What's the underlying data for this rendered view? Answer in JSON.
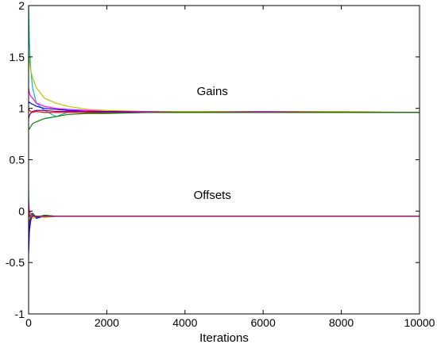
{
  "chart_data": {
    "type": "line",
    "title": "",
    "xlabel": "Iterations",
    "ylabel": "",
    "xlim": [
      0,
      10000
    ],
    "ylim": [
      -1,
      2
    ],
    "grid": false,
    "legend": "none",
    "x_ticks": [
      0,
      2000,
      4000,
      6000,
      8000,
      10000
    ],
    "x_tick_labels": [
      "0",
      "2000",
      "4000",
      "6000",
      "8000",
      "10000"
    ],
    "y_ticks": [
      -1,
      -0.5,
      0,
      0.5,
      1,
      1.5,
      2
    ],
    "y_tick_labels": [
      "-1",
      "-0.5",
      "0",
      "0.5",
      "1",
      "1.5",
      "2"
    ],
    "annotations": [
      {
        "text": "Gains",
        "x": 4700,
        "y": 1.13
      },
      {
        "text": "Offsets",
        "x": 4700,
        "y": 0.12
      }
    ],
    "series": [
      {
        "color": "#00BFBF",
        "group": "gains",
        "x": [
          0,
          20,
          50,
          100,
          200,
          400,
          700,
          1000,
          1500,
          2000,
          3000,
          4000,
          6000,
          8000,
          10000
        ],
        "y": [
          2.0,
          1.65,
          1.4,
          1.2,
          1.05,
          0.98,
          0.92,
          0.96,
          0.96,
          0.96,
          0.96,
          0.96,
          0.96,
          0.96,
          0.96
        ]
      },
      {
        "color": "#C0C000",
        "group": "gains",
        "x": [
          0,
          20,
          50,
          100,
          200,
          400,
          700,
          1000,
          1500,
          2000,
          3000,
          4000,
          6000,
          8000,
          10000
        ],
        "y": [
          1.55,
          1.45,
          1.38,
          1.3,
          1.2,
          1.1,
          1.05,
          1.02,
          0.99,
          0.98,
          0.97,
          0.97,
          0.97,
          0.97,
          0.96
        ]
      },
      {
        "color": "#FF00FF",
        "group": "gains",
        "x": [
          0,
          20,
          50,
          100,
          200,
          400,
          700,
          1000,
          1500,
          2000,
          3000,
          4000,
          6000,
          8000,
          10000
        ],
        "y": [
          1.2,
          1.15,
          1.12,
          1.1,
          1.05,
          1.02,
          1.0,
          0.99,
          0.98,
          0.97,
          0.97,
          0.96,
          0.97,
          0.96,
          0.96
        ]
      },
      {
        "color": "#0000FF",
        "group": "gains",
        "x": [
          0,
          20,
          50,
          100,
          200,
          400,
          700,
          1000,
          1500,
          2000,
          3000,
          4000,
          6000,
          8000,
          10000
        ],
        "y": [
          1.05,
          1.06,
          1.05,
          1.04,
          1.02,
          1.0,
          0.99,
          0.98,
          0.97,
          0.97,
          0.96,
          0.96,
          0.96,
          0.96,
          0.96
        ]
      },
      {
        "color": "#800080",
        "group": "gains",
        "x": [
          0,
          20,
          50,
          100,
          200,
          400,
          700,
          1000,
          1500,
          2000,
          3000,
          4000,
          6000,
          8000,
          10000
        ],
        "y": [
          0.9,
          0.93,
          0.95,
          0.97,
          0.98,
          0.98,
          0.97,
          0.97,
          0.97,
          0.96,
          0.96,
          0.96,
          0.96,
          0.96,
          0.96
        ]
      },
      {
        "color": "#FF0000",
        "group": "gains",
        "x": [
          0,
          20,
          50,
          100,
          200,
          400,
          700,
          1000,
          1500,
          2000,
          3000,
          4000,
          6000,
          8000,
          10000
        ],
        "y": [
          1.0,
          0.98,
          0.97,
          0.96,
          0.97,
          0.96,
          0.96,
          0.96,
          0.96,
          0.96,
          0.96,
          0.96,
          0.96,
          0.96,
          0.96
        ]
      },
      {
        "color": "#008000",
        "group": "gains",
        "x": [
          0,
          20,
          50,
          100,
          200,
          400,
          700,
          1000,
          1500,
          2000,
          3000,
          4000,
          6000,
          8000,
          10000
        ],
        "y": [
          0.8,
          0.8,
          0.82,
          0.85,
          0.87,
          0.9,
          0.92,
          0.94,
          0.95,
          0.95,
          0.96,
          0.96,
          0.96,
          0.96,
          0.96
        ]
      },
      {
        "color": "#00BFBF",
        "group": "offsets",
        "x": [
          0,
          20,
          50,
          100,
          200,
          400,
          700,
          1000,
          1500,
          2000,
          3000,
          4000,
          6000,
          8000,
          10000
        ],
        "y": [
          0.2,
          -0.15,
          -0.05,
          -0.02,
          -0.06,
          -0.04,
          -0.05,
          -0.05,
          -0.05,
          -0.05,
          -0.05,
          -0.05,
          -0.05,
          -0.05,
          -0.05
        ]
      },
      {
        "color": "#0000FF",
        "group": "offsets",
        "x": [
          0,
          20,
          50,
          100,
          200,
          400,
          700,
          1000,
          1500,
          2000,
          3000,
          4000,
          6000,
          8000,
          10000
        ],
        "y": [
          -0.42,
          -0.2,
          -0.1,
          -0.03,
          -0.07,
          -0.05,
          -0.05,
          -0.05,
          -0.05,
          -0.05,
          -0.05,
          -0.05,
          -0.05,
          -0.05,
          -0.05
        ]
      },
      {
        "color": "#FF00FF",
        "group": "offsets",
        "x": [
          0,
          20,
          50,
          100,
          200,
          400,
          700,
          1000,
          1500,
          2000,
          3000,
          4000,
          6000,
          8000,
          10000
        ],
        "y": [
          0.1,
          0.0,
          -0.02,
          -0.04,
          -0.05,
          -0.06,
          -0.05,
          -0.05,
          -0.05,
          -0.05,
          -0.05,
          -0.05,
          -0.05,
          -0.05,
          -0.05
        ]
      },
      {
        "color": "#C0C000",
        "group": "offsets",
        "x": [
          0,
          20,
          50,
          100,
          200,
          400,
          700,
          1000,
          1500,
          2000,
          3000,
          4000,
          6000,
          8000,
          10000
        ],
        "y": [
          -0.1,
          -0.08,
          -0.06,
          -0.07,
          -0.05,
          -0.06,
          -0.05,
          -0.05,
          -0.05,
          -0.05,
          -0.05,
          -0.05,
          -0.05,
          -0.05,
          -0.05
        ]
      },
      {
        "color": "#008000",
        "group": "offsets",
        "x": [
          0,
          20,
          50,
          100,
          200,
          400,
          700,
          1000,
          1500,
          2000,
          3000,
          4000,
          6000,
          8000,
          10000
        ],
        "y": [
          0.0,
          -0.05,
          -0.04,
          -0.02,
          -0.06,
          -0.04,
          -0.05,
          -0.05,
          -0.05,
          -0.05,
          -0.05,
          -0.05,
          -0.05,
          -0.05,
          -0.05
        ]
      },
      {
        "color": "#FF0000",
        "group": "offsets",
        "x": [
          0,
          20,
          50,
          100,
          200,
          400,
          700,
          1000,
          1500,
          2000,
          3000,
          4000,
          6000,
          8000,
          10000
        ],
        "y": [
          0.05,
          -0.03,
          -0.06,
          -0.05,
          -0.05,
          -0.05,
          -0.05,
          -0.05,
          -0.05,
          -0.05,
          -0.05,
          -0.05,
          -0.05,
          -0.05,
          -0.05
        ]
      },
      {
        "color": "#800080",
        "group": "offsets",
        "x": [
          0,
          20,
          50,
          100,
          200,
          400,
          700,
          1000,
          1500,
          2000,
          3000,
          4000,
          6000,
          8000,
          10000
        ],
        "y": [
          -0.2,
          -0.1,
          -0.07,
          -0.05,
          -0.05,
          -0.05,
          -0.05,
          -0.05,
          -0.05,
          -0.05,
          -0.05,
          -0.05,
          -0.05,
          -0.05,
          -0.05
        ]
      }
    ]
  }
}
